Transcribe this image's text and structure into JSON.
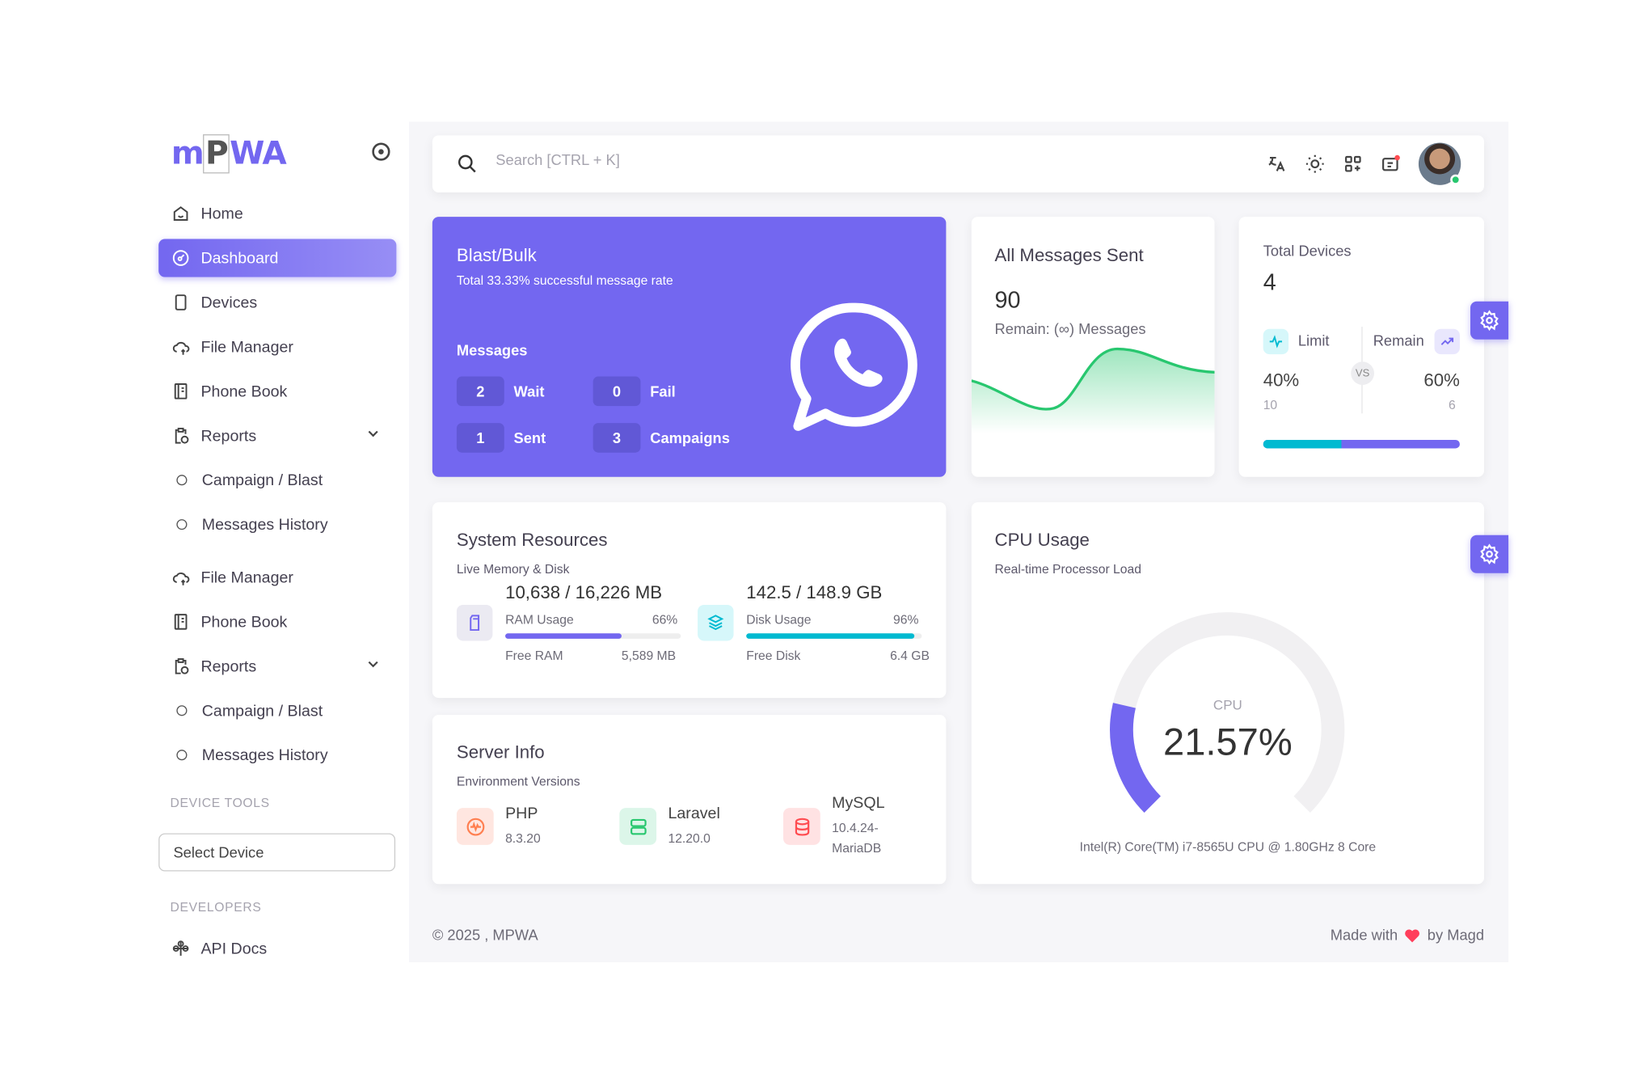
{
  "brand": {
    "logo": "MPWA"
  },
  "sidebar": {
    "items": [
      {
        "label": "Home",
        "icon": "home-icon"
      },
      {
        "label": "Dashboard",
        "icon": "dashboard-icon",
        "active": true
      },
      {
        "label": "Devices",
        "icon": "smartphone-icon"
      },
      {
        "label": "File Manager",
        "icon": "cloud-upload-icon"
      },
      {
        "label": "Phone Book",
        "icon": "book-icon"
      },
      {
        "label": "Reports",
        "icon": "report-icon"
      },
      {
        "label": "Campaign / Blast",
        "icon": "circle-icon"
      },
      {
        "label": "Messages History",
        "icon": "circle-icon"
      },
      {
        "label": "File Manager",
        "icon": "cloud-upload-icon"
      },
      {
        "label": "Phone Book",
        "icon": "book-icon"
      },
      {
        "label": "Reports",
        "icon": "report-icon"
      },
      {
        "label": "Campaign / Blast",
        "icon": "circle-icon"
      },
      {
        "label": "Messages History",
        "icon": "circle-icon"
      }
    ],
    "device_tools_label": "DEVICE TOOLS",
    "select_device": "Select Device",
    "developers_label": "DEVELOPERS",
    "api_docs": "API Docs"
  },
  "header": {
    "search_placeholder": "Search [CTRL + K]"
  },
  "blast": {
    "title": "Blast/Bulk",
    "subtitle": "Total 33.33% successful message rate",
    "messages_label": "Messages",
    "stats": [
      {
        "value": "2",
        "label": "Wait"
      },
      {
        "value": "0",
        "label": "Fail"
      },
      {
        "value": "1",
        "label": "Sent"
      },
      {
        "value": "3",
        "label": "Campaigns"
      }
    ]
  },
  "all_messages": {
    "title": "All Messages Sent",
    "value": "90",
    "remain": "Remain: (∞) Messages",
    "sparkline": [
      40,
      20,
      60,
      55
    ]
  },
  "devices": {
    "title": "Total Devices",
    "value": "4",
    "limit_label": "Limit",
    "remain_label": "Remain",
    "vs": "VS",
    "limit_pct": "40%",
    "remain_pct": "60%",
    "limit_count": "10",
    "remain_count": "6",
    "limit_fraction": 0.4
  },
  "system": {
    "title": "System Resources",
    "subtitle": "Live Memory & Disk",
    "ram": {
      "total": "10,638 / 16,226 MB",
      "label": "RAM Usage",
      "pct": "66%",
      "value": 66,
      "free_label": "Free RAM",
      "free": "5,589 MB"
    },
    "disk": {
      "total": "142.5 / 148.9 GB",
      "label": "Disk Usage",
      "pct": "96%",
      "value": 96,
      "free_label": "Free Disk",
      "free": "6.4 GB"
    }
  },
  "server": {
    "title": "Server Info",
    "subtitle": "Environment Versions",
    "php": {
      "name": "PHP",
      "version": "8.3.20"
    },
    "laravel": {
      "name": "Laravel",
      "version": "12.20.0"
    },
    "mysql": {
      "name": "MySQL",
      "version1": "10.4.24-",
      "version2": "MariaDB"
    }
  },
  "cpu": {
    "title": "CPU Usage",
    "subtitle": "Real-time Processor Load",
    "label": "CPU",
    "value_text": "21.57%",
    "value": 21.57,
    "model": "Intel(R) Core(TM) i7-8565U CPU @ 1.80GHz 8 Core"
  },
  "footer": {
    "copyright": "© 2025 , MPWA",
    "made_with": "Made with",
    "by": "by Magd"
  },
  "colors": {
    "primary": "#7367f0",
    "cyan": "#00bad1",
    "green": "#28c76f",
    "red": "#ff4c51",
    "orange": "#ff9f43"
  }
}
